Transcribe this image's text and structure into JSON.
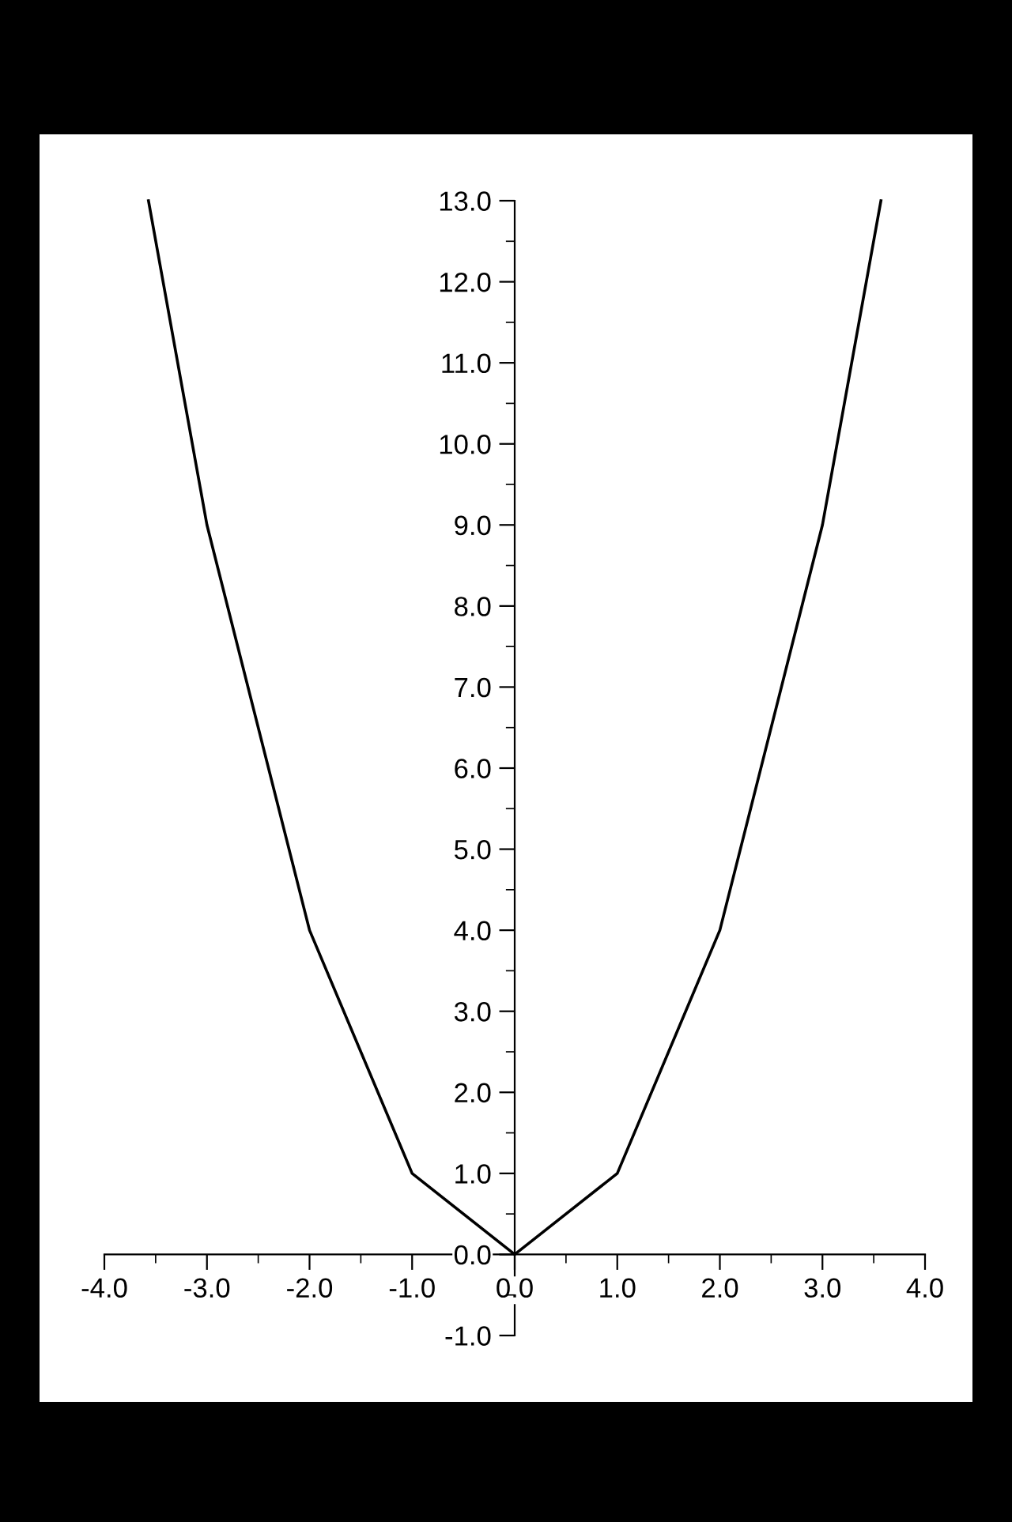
{
  "chart_data": {
    "type": "line",
    "x": [
      -3.57,
      -3,
      -2,
      -1,
      0,
      1,
      2,
      3,
      3.57
    ],
    "series": [
      {
        "color": "#000000",
        "values": [
          13,
          9,
          4,
          1,
          0,
          1,
          4,
          9,
          13
        ]
      }
    ],
    "xlim": [
      -4,
      4
    ],
    "ylim": [
      -1,
      13
    ],
    "xticks": [
      {
        "value": -4,
        "label": "-4.0"
      },
      {
        "value": -3,
        "label": "-3.0"
      },
      {
        "value": -2,
        "label": "-2.0"
      },
      {
        "value": -1,
        "label": "-1.0"
      },
      {
        "value": 0,
        "label": "0.0"
      },
      {
        "value": 1,
        "label": "1.0"
      },
      {
        "value": 2,
        "label": "2.0"
      },
      {
        "value": 3,
        "label": "3.0"
      },
      {
        "value": 4,
        "label": "4.0"
      }
    ],
    "yticks": [
      {
        "value": -1,
        "label": "-1.0"
      },
      {
        "value": 0,
        "label": "0.0"
      },
      {
        "value": 1,
        "label": "1.0"
      },
      {
        "value": 2,
        "label": "2.0"
      },
      {
        "value": 3,
        "label": "3.0"
      },
      {
        "value": 4,
        "label": "4.0"
      },
      {
        "value": 5,
        "label": "5.0"
      },
      {
        "value": 6,
        "label": "6.0"
      },
      {
        "value": 7,
        "label": "7.0"
      },
      {
        "value": 8,
        "label": "8.0"
      },
      {
        "value": 9,
        "label": "9.0"
      },
      {
        "value": 10,
        "label": "10.0"
      },
      {
        "value": 11,
        "label": "11.0"
      },
      {
        "value": 12,
        "label": "12.0"
      },
      {
        "value": 13,
        "label": "13.0"
      }
    ],
    "grid": false,
    "legend": false,
    "marker": "none",
    "line_style": "solid"
  }
}
